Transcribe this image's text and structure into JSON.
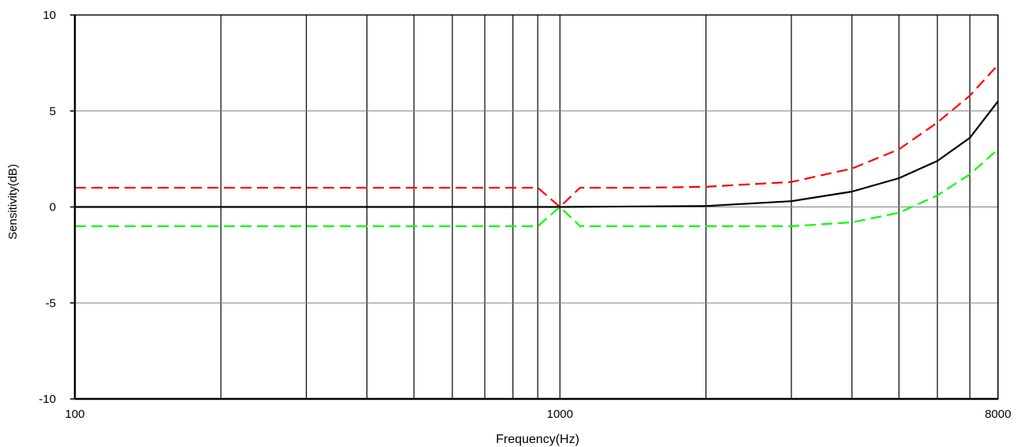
{
  "chart_data": {
    "type": "line",
    "title": "",
    "xlabel": "Frequency(Hz)",
    "ylabel": "Sensitivity(dB)",
    "xscale": "log",
    "xlim": [
      100,
      8000
    ],
    "ylim": [
      -10,
      10
    ],
    "x_tick_labels": [
      {
        "value": 100,
        "label": "100"
      },
      {
        "value": 1000,
        "label": "1000"
      },
      {
        "value": 8000,
        "label": "8000"
      }
    ],
    "x_gridlines": [
      100,
      200,
      300,
      400,
      500,
      600,
      700,
      800,
      900,
      1000,
      2000,
      3000,
      4000,
      5000,
      6000,
      7000,
      8000
    ],
    "y_ticks": [
      {
        "value": 10,
        "label": "10"
      },
      {
        "value": 5,
        "label": "5"
      },
      {
        "value": 0,
        "label": "0"
      },
      {
        "value": -5,
        "label": "-5"
      },
      {
        "value": -10,
        "label": "-10"
      }
    ],
    "grid": true,
    "series": [
      {
        "color": "#ff0000",
        "dash": "dashed",
        "points": [
          [
            100,
            1
          ],
          [
            900,
            1
          ],
          [
            1000,
            0
          ],
          [
            1100,
            1
          ],
          [
            1500,
            1
          ],
          [
            2000,
            1.05
          ],
          [
            3000,
            1.3
          ],
          [
            4000,
            2.0
          ],
          [
            5000,
            3.0
          ],
          [
            6000,
            4.4
          ],
          [
            7000,
            5.8
          ],
          [
            8000,
            7.4
          ]
        ]
      },
      {
        "color": "#000000",
        "dash": "solid",
        "points": [
          [
            100,
            0
          ],
          [
            1000,
            0
          ],
          [
            2000,
            0.05
          ],
          [
            3000,
            0.3
          ],
          [
            4000,
            0.8
          ],
          [
            5000,
            1.5
          ],
          [
            6000,
            2.4
          ],
          [
            7000,
            3.6
          ],
          [
            8000,
            5.5
          ]
        ]
      },
      {
        "color": "#00ff00",
        "dash": "dashed",
        "points": [
          [
            100,
            -1
          ],
          [
            900,
            -1
          ],
          [
            1000,
            0
          ],
          [
            1100,
            -1
          ],
          [
            2000,
            -1
          ],
          [
            3000,
            -1
          ],
          [
            4000,
            -0.8
          ],
          [
            5000,
            -0.3
          ],
          [
            6000,
            0.6
          ],
          [
            7000,
            1.7
          ],
          [
            8000,
            3.0
          ]
        ]
      }
    ]
  }
}
